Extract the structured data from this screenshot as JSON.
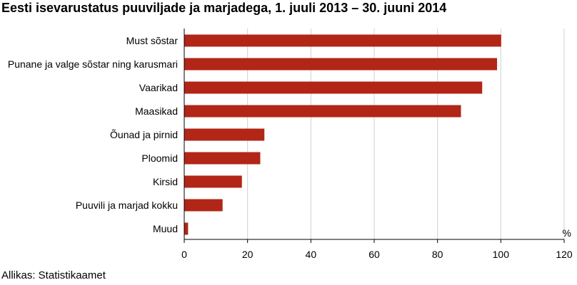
{
  "title": "Eesti isevarustatus puuviljade ja marjadega, 1. juuli 2013 – 30. juuni 2014",
  "source": "Allikas: Statistikaamet",
  "chart_data": {
    "type": "bar",
    "orientation": "horizontal",
    "title": "Eesti isevarustatus puuviljade ja marjadega, 1. juuli 2013 – 30. juuni 2014",
    "categories": [
      "Must sõstar",
      "Punane ja valge sõstar ning karusmari",
      "Vaarikad",
      "Maasikad",
      "Õunad ja pirnid",
      "Ploomid",
      "Kirsid",
      "Puuvili ja marjad kokku",
      "Muud"
    ],
    "values": [
      100,
      98.7,
      94,
      87.3,
      25.2,
      23.9,
      18.1,
      12,
      1.1
    ],
    "xlabel": "%",
    "ylabel": "",
    "xlim": [
      0,
      120
    ],
    "xticks": [
      0,
      20,
      40,
      60,
      80,
      100,
      120
    ],
    "grid": "vertical",
    "bar_color": "#b22617"
  }
}
